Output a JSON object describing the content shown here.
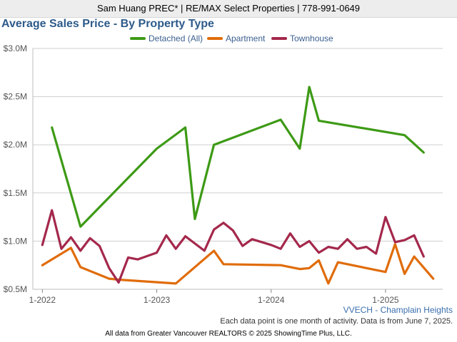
{
  "header": {
    "agent_line": "Sam Huang PREC* | RE/MAX Select Properties | 778-991-0649"
  },
  "chart_data": {
    "type": "line",
    "title": "Average Sales Price - By Property Type",
    "xlabel": "",
    "ylabel": "",
    "ylim": [
      0.5,
      3.0
    ],
    "y_unit": "millions of dollars",
    "y_ticks": [
      0.5,
      1.0,
      1.5,
      2.0,
      2.5,
      3.0
    ],
    "y_tick_labels": [
      "$0.5M",
      "$1.0M",
      "$1.5M",
      "$2.0M",
      "$2.5M",
      "$3.0M"
    ],
    "x_tick_labels": [
      "1-2022",
      "1-2023",
      "1-2024",
      "1-2025"
    ],
    "x_tick_dates": [
      "2022-01",
      "2023-01",
      "2024-01",
      "2025-01"
    ],
    "xlim": [
      "2021-12",
      "2025-07"
    ],
    "grid": "horizontal",
    "legend_position": "top",
    "series": [
      {
        "name": "Detached (All)",
        "color": "#3d9a16",
        "points": [
          [
            "2022-02",
            2.18
          ],
          [
            "2022-05",
            1.15
          ],
          [
            "2023-01",
            1.96
          ],
          [
            "2023-04",
            2.18
          ],
          [
            "2023-05",
            1.23
          ],
          [
            "2023-07",
            2.0
          ],
          [
            "2024-02",
            2.26
          ],
          [
            "2024-04",
            1.96
          ],
          [
            "2024-05",
            2.6
          ],
          [
            "2024-06",
            2.25
          ],
          [
            "2025-03",
            2.1
          ],
          [
            "2025-05",
            1.92
          ]
        ]
      },
      {
        "name": "Apartment",
        "color": "#e06c0a",
        "points": [
          [
            "2022-01",
            0.75
          ],
          [
            "2022-04",
            0.93
          ],
          [
            "2022-05",
            0.73
          ],
          [
            "2022-08",
            0.61
          ],
          [
            "2022-09",
            0.6
          ],
          [
            "2023-03",
            0.56
          ],
          [
            "2023-07",
            0.9
          ],
          [
            "2023-08",
            0.76
          ],
          [
            "2024-02",
            0.75
          ],
          [
            "2024-04",
            0.71
          ],
          [
            "2024-05",
            0.72
          ],
          [
            "2024-06",
            0.8
          ],
          [
            "2024-07",
            0.56
          ],
          [
            "2024-08",
            0.78
          ],
          [
            "2025-01",
            0.68
          ],
          [
            "2025-02",
            0.97
          ],
          [
            "2025-03",
            0.66
          ],
          [
            "2025-04",
            0.84
          ],
          [
            "2025-06",
            0.61
          ]
        ]
      },
      {
        "name": "Townhouse",
        "color": "#a4284c",
        "points": [
          [
            "2022-01",
            0.96
          ],
          [
            "2022-02",
            1.32
          ],
          [
            "2022-03",
            0.92
          ],
          [
            "2022-04",
            1.04
          ],
          [
            "2022-05",
            0.9
          ],
          [
            "2022-06",
            1.03
          ],
          [
            "2022-07",
            0.95
          ],
          [
            "2022-08",
            0.72
          ],
          [
            "2022-09",
            0.57
          ],
          [
            "2022-10",
            0.83
          ],
          [
            "2022-11",
            0.81
          ],
          [
            "2023-01",
            0.88
          ],
          [
            "2023-02",
            1.06
          ],
          [
            "2023-03",
            0.92
          ],
          [
            "2023-04",
            1.05
          ],
          [
            "2023-06",
            0.9
          ],
          [
            "2023-07",
            1.12
          ],
          [
            "2023-08",
            1.19
          ],
          [
            "2023-09",
            1.11
          ],
          [
            "2023-10",
            0.95
          ],
          [
            "2023-11",
            1.02
          ],
          [
            "2024-01",
            0.96
          ],
          [
            "2024-02",
            0.92
          ],
          [
            "2024-03",
            1.08
          ],
          [
            "2024-04",
            0.94
          ],
          [
            "2024-05",
            1.0
          ],
          [
            "2024-06",
            0.88
          ],
          [
            "2024-07",
            0.94
          ],
          [
            "2024-08",
            0.92
          ],
          [
            "2024-09",
            1.02
          ],
          [
            "2024-10",
            0.92
          ],
          [
            "2024-11",
            0.94
          ],
          [
            "2024-12",
            0.87
          ],
          [
            "2025-01",
            1.25
          ],
          [
            "2025-02",
            0.99
          ],
          [
            "2025-03",
            1.01
          ],
          [
            "2025-04",
            1.06
          ],
          [
            "2025-05",
            0.84
          ]
        ]
      }
    ]
  },
  "footer": {
    "region": "VVECH - Champlain Heights",
    "note": "Each data point is one month of activity. Data is from June 7, 2025.",
    "credit": "All data from Greater Vancouver REALTORS © 2025 ShowingTime Plus, LLC."
  }
}
